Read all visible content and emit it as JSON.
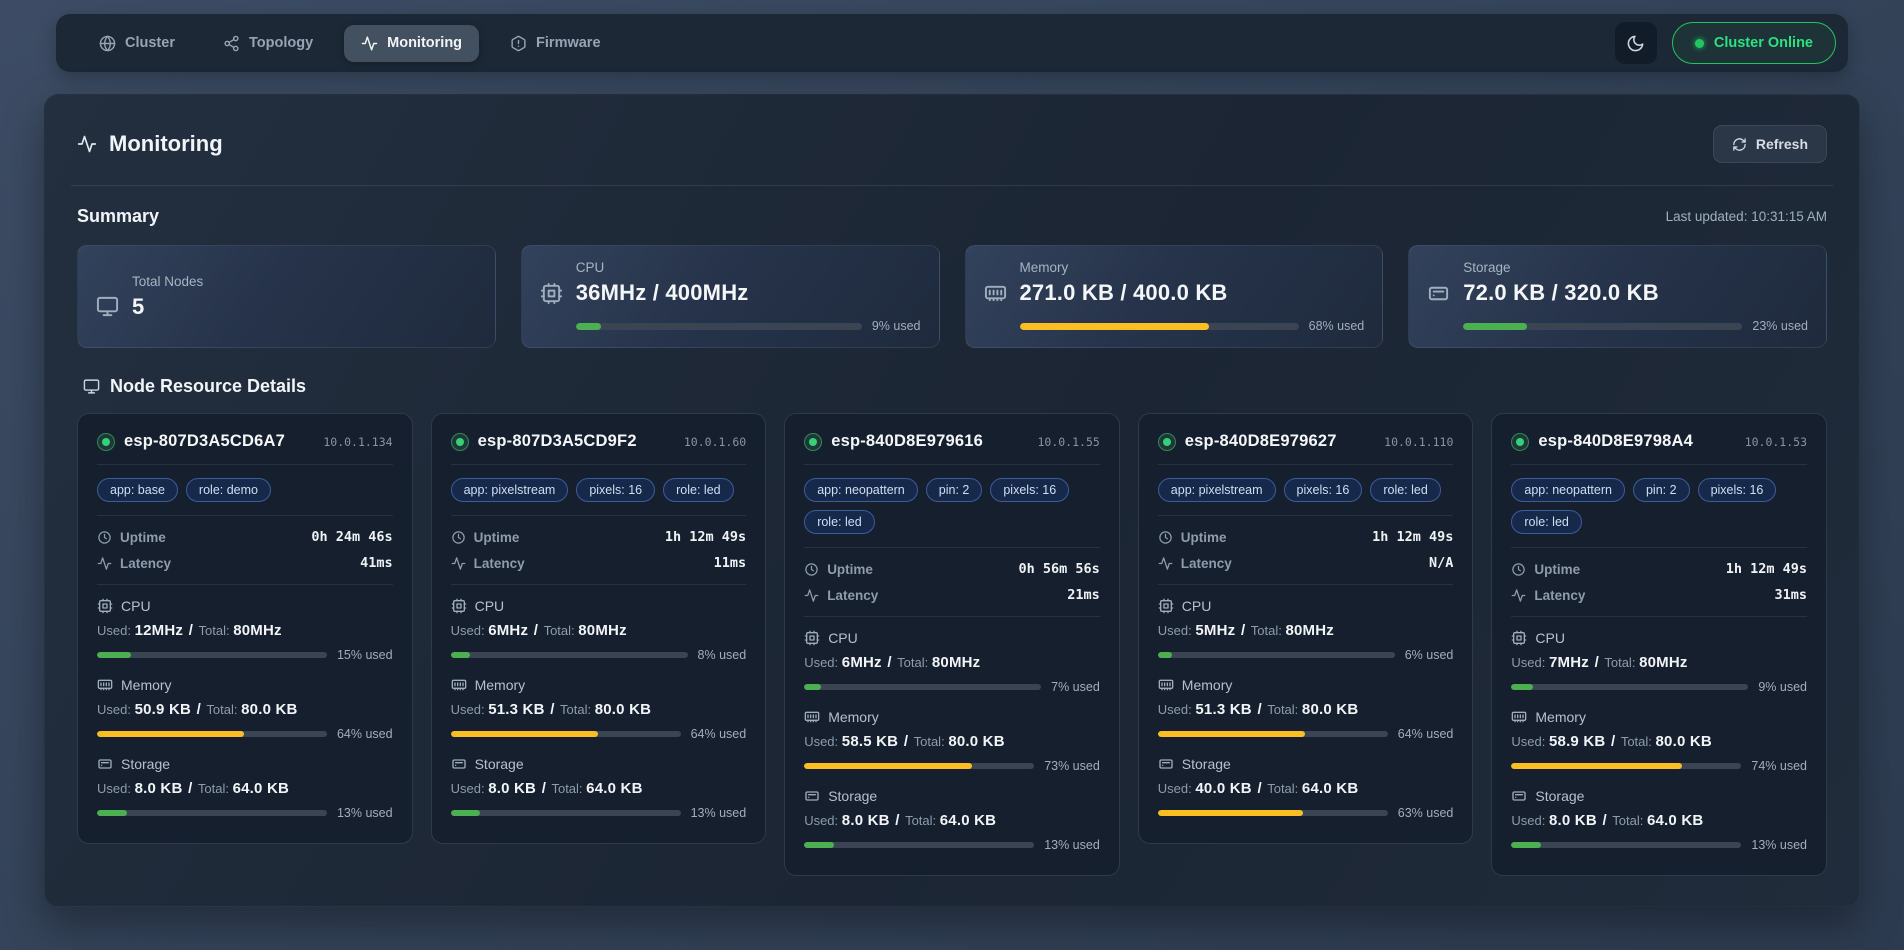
{
  "nav": {
    "tabs": [
      {
        "label": "Cluster",
        "icon": "globe",
        "active": false
      },
      {
        "label": "Topology",
        "icon": "topology",
        "active": false
      },
      {
        "label": "Monitoring",
        "icon": "activity",
        "active": true
      },
      {
        "label": "Firmware",
        "icon": "firmware",
        "active": false
      }
    ],
    "cluster_status": {
      "label": "Cluster Online",
      "color": "#22c55e"
    }
  },
  "page": {
    "title": "Monitoring",
    "refresh_label": "Refresh",
    "summary_heading": "Summary",
    "last_updated": "Last updated: 10:31:15 AM",
    "details_heading": "Node Resource Details"
  },
  "labels": {
    "uptime": "Uptime",
    "latency": "Latency",
    "used": "Used:",
    "total": "Total:",
    "separator": "/"
  },
  "colors": {
    "green": "#4caf50",
    "yellow": "#fbbf24",
    "accent_green": "#22c55e"
  },
  "summary_cards": [
    {
      "label": "Total Nodes",
      "value": "5",
      "icon": "monitor",
      "percent": null,
      "percent_label": null,
      "bar_color": null
    },
    {
      "label": "CPU",
      "value": "36MHz / 400MHz",
      "icon": "cpu",
      "percent": 9,
      "percent_label": "9% used",
      "bar_color": "#4caf50"
    },
    {
      "label": "Memory",
      "value": "271.0 KB / 400.0 KB",
      "icon": "memory",
      "percent": 68,
      "percent_label": "68% used",
      "bar_color": "#fbbf24"
    },
    {
      "label": "Storage",
      "value": "72.0 KB / 320.0 KB",
      "icon": "storage",
      "percent": 23,
      "percent_label": "23% used",
      "bar_color": "#4caf50"
    }
  ],
  "nodes": [
    {
      "name": "esp-807D3A5CD6A7",
      "ip": "10.0.1.134",
      "tags": [
        "app: base",
        "role: demo"
      ],
      "uptime": "0h 24m 46s",
      "latency": "41ms",
      "resources": [
        {
          "name": "CPU",
          "icon": "cpu",
          "used": "12MHz",
          "total": "80MHz",
          "percent": 15,
          "percent_label": "15% used",
          "bar_color": "#4caf50"
        },
        {
          "name": "Memory",
          "icon": "memory",
          "used": "50.9 KB",
          "total": "80.0 KB",
          "percent": 64,
          "percent_label": "64% used",
          "bar_color": "#fbbf24"
        },
        {
          "name": "Storage",
          "icon": "storage",
          "used": "8.0 KB",
          "total": "64.0 KB",
          "percent": 13,
          "percent_label": "13% used",
          "bar_color": "#4caf50"
        }
      ]
    },
    {
      "name": "esp-807D3A5CD9F2",
      "ip": "10.0.1.60",
      "tags": [
        "app: pixelstream",
        "pixels: 16",
        "role: led"
      ],
      "uptime": "1h 12m 49s",
      "latency": "11ms",
      "resources": [
        {
          "name": "CPU",
          "icon": "cpu",
          "used": "6MHz",
          "total": "80MHz",
          "percent": 8,
          "percent_label": "8% used",
          "bar_color": "#4caf50"
        },
        {
          "name": "Memory",
          "icon": "memory",
          "used": "51.3 KB",
          "total": "80.0 KB",
          "percent": 64,
          "percent_label": "64% used",
          "bar_color": "#fbbf24"
        },
        {
          "name": "Storage",
          "icon": "storage",
          "used": "8.0 KB",
          "total": "64.0 KB",
          "percent": 13,
          "percent_label": "13% used",
          "bar_color": "#4caf50"
        }
      ]
    },
    {
      "name": "esp-840D8E979616",
      "ip": "10.0.1.55",
      "tags": [
        "app: neopattern",
        "pin: 2",
        "pixels: 16",
        "role: led"
      ],
      "uptime": "0h 56m 56s",
      "latency": "21ms",
      "resources": [
        {
          "name": "CPU",
          "icon": "cpu",
          "used": "6MHz",
          "total": "80MHz",
          "percent": 7,
          "percent_label": "7% used",
          "bar_color": "#4caf50"
        },
        {
          "name": "Memory",
          "icon": "memory",
          "used": "58.5 KB",
          "total": "80.0 KB",
          "percent": 73,
          "percent_label": "73% used",
          "bar_color": "#fbbf24"
        },
        {
          "name": "Storage",
          "icon": "storage",
          "used": "8.0 KB",
          "total": "64.0 KB",
          "percent": 13,
          "percent_label": "13% used",
          "bar_color": "#4caf50"
        }
      ]
    },
    {
      "name": "esp-840D8E979627",
      "ip": "10.0.1.110",
      "tags": [
        "app: pixelstream",
        "pixels: 16",
        "role: led"
      ],
      "uptime": "1h 12m 49s",
      "latency": "N/A",
      "resources": [
        {
          "name": "CPU",
          "icon": "cpu",
          "used": "5MHz",
          "total": "80MHz",
          "percent": 6,
          "percent_label": "6% used",
          "bar_color": "#4caf50"
        },
        {
          "name": "Memory",
          "icon": "memory",
          "used": "51.3 KB",
          "total": "80.0 KB",
          "percent": 64,
          "percent_label": "64% used",
          "bar_color": "#fbbf24"
        },
        {
          "name": "Storage",
          "icon": "storage",
          "used": "40.0 KB",
          "total": "64.0 KB",
          "percent": 63,
          "percent_label": "63% used",
          "bar_color": "#fbbf24"
        }
      ]
    },
    {
      "name": "esp-840D8E9798A4",
      "ip": "10.0.1.53",
      "tags": [
        "app: neopattern",
        "pin: 2",
        "pixels: 16",
        "role: led"
      ],
      "uptime": "1h 12m 49s",
      "latency": "31ms",
      "resources": [
        {
          "name": "CPU",
          "icon": "cpu",
          "used": "7MHz",
          "total": "80MHz",
          "percent": 9,
          "percent_label": "9% used",
          "bar_color": "#4caf50"
        },
        {
          "name": "Memory",
          "icon": "memory",
          "used": "58.9 KB",
          "total": "80.0 KB",
          "percent": 74,
          "percent_label": "74% used",
          "bar_color": "#fbbf24"
        },
        {
          "name": "Storage",
          "icon": "storage",
          "used": "8.0 KB",
          "total": "64.0 KB",
          "percent": 13,
          "percent_label": "13% used",
          "bar_color": "#4caf50"
        }
      ]
    }
  ]
}
